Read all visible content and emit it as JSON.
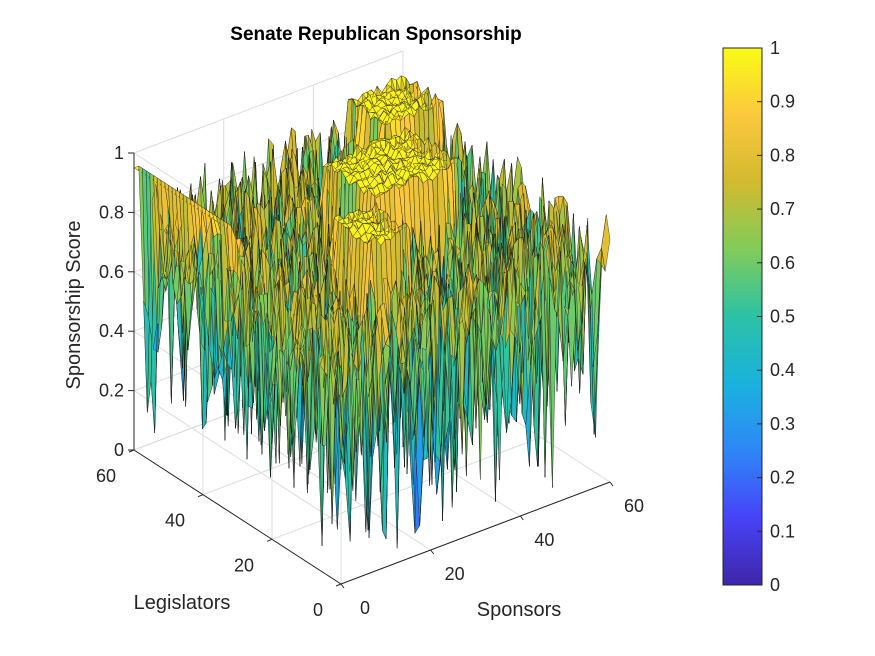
{
  "chart_data": {
    "type": "surface",
    "title": "Senate Republican Sponsorship",
    "xlabel": "Sponsors",
    "ylabel": "Legislators",
    "zlabel": "Sponsorship Score",
    "xlim": [
      0,
      60
    ],
    "ylim": [
      0,
      60
    ],
    "zlim": [
      0,
      1
    ],
    "x_ticks": [
      "0",
      "20",
      "40",
      "60"
    ],
    "y_ticks": [
      "0",
      "20",
      "40",
      "60"
    ],
    "z_ticks": [
      "0",
      "0.2",
      "0.4",
      "0.6",
      "0.8",
      "1"
    ],
    "grid": true,
    "colormap": "parula",
    "colorbar": {
      "location": "right",
      "limits": [
        0,
        1
      ],
      "ticks": [
        "0",
        "0.1",
        "0.2",
        "0.3",
        "0.4",
        "0.5",
        "0.6",
        "0.7",
        "0.8",
        "0.9",
        "1"
      ],
      "colors": [
        "#3e26a8",
        "#4743f8",
        "#2e87f7",
        "#1ab2dd",
        "#2bc2a5",
        "#81cc59",
        "#d2ba2f",
        "#fcc83d",
        "#f9fb15"
      ]
    },
    "surface": {
      "grid_size": 56,
      "typical_range": [
        0.3,
        1.0
      ],
      "min_value": 0.0,
      "max_value": 1.0,
      "high_plateaus_value": 1.0
    }
  }
}
